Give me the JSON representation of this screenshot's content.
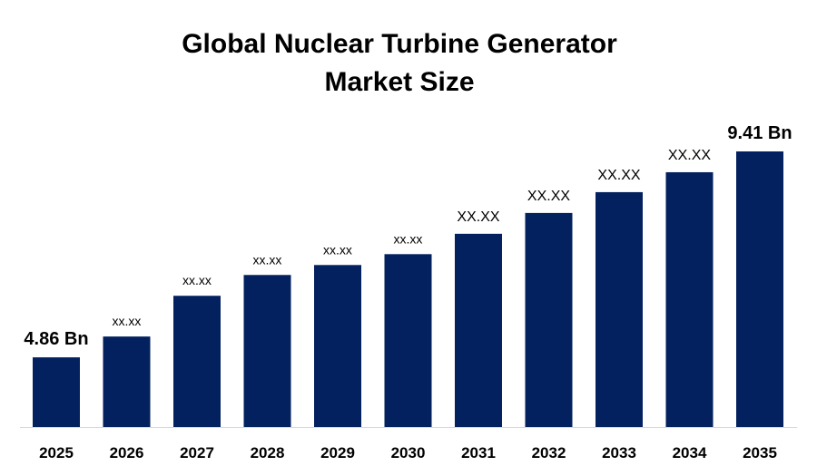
{
  "chart_data": {
    "type": "bar",
    "title_line1": "Global Nuclear Turbine Generator",
    "title_line2": "Market Size",
    "xlabel": "",
    "ylabel": "",
    "categories": [
      "2025",
      "2026",
      "2027",
      "2028",
      "2029",
      "2030",
      "2031",
      "2032",
      "2033",
      "2034",
      "2035"
    ],
    "values": [
      4.86,
      5.32,
      6.22,
      6.68,
      6.9,
      7.14,
      7.59,
      8.05,
      8.51,
      8.95,
      9.41
    ],
    "data_labels": [
      "4.86 Bn",
      "xx.xx",
      "xx.xx",
      "xx.xx",
      "xx.xx",
      "xx.xx",
      "XX.XX",
      "XX.XX",
      "XX.XX",
      "XX.XX",
      "9.41 Bn"
    ],
    "ylim": [
      3.32,
      9.41
    ],
    "y_axis_visible": false,
    "grid": false,
    "legend": "none",
    "bar_color": "#03215F"
  }
}
